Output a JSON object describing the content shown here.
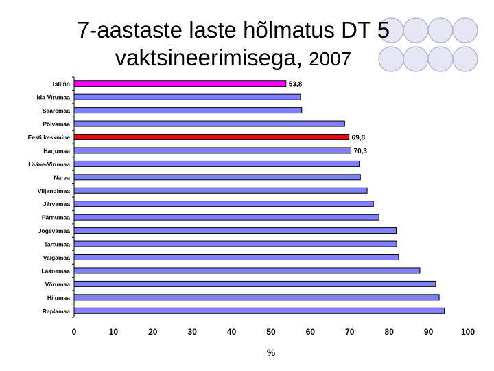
{
  "title": "7-aastaste laste hõlmatus DT 5",
  "title_line2": "vaktsineerimisega,",
  "title_year": "2007",
  "chart_data": {
    "type": "bar",
    "orientation": "horizontal",
    "xlabel": "%",
    "xlim": [
      0,
      100
    ],
    "xticks": [
      0,
      10,
      20,
      30,
      40,
      50,
      60,
      70,
      80,
      90,
      100
    ],
    "categories": [
      "Tallinn",
      "Ida-Virumaa",
      "Saaremaa",
      "Põlvamaa",
      "Eesti keskmine",
      "Harjumaa",
      "Lääne-Virumaa",
      "Narva",
      "Viljandimaa",
      "Järvamaa",
      "Pärnumaa",
      "Jõgevamaa",
      "Tartumaa",
      "Valgamaa",
      "Läänemaa",
      "Võrumaa",
      "Hiiumaa",
      "Raplamaa"
    ],
    "values": [
      53.8,
      57.5,
      57.8,
      68.7,
      69.8,
      70.3,
      72.4,
      72.7,
      74.4,
      76.0,
      77.4,
      81.8,
      81.9,
      82.4,
      87.8,
      91.8,
      92.7,
      94.0
    ],
    "data_labels": {
      "0": "53,8",
      "4": "69,8",
      "5": "70,3"
    },
    "colors": {
      "default": "#8080ff",
      "Tallinn": "#ff00ff",
      "Eesti keskmine": "#ff0000",
      "edge": "#000000"
    }
  }
}
